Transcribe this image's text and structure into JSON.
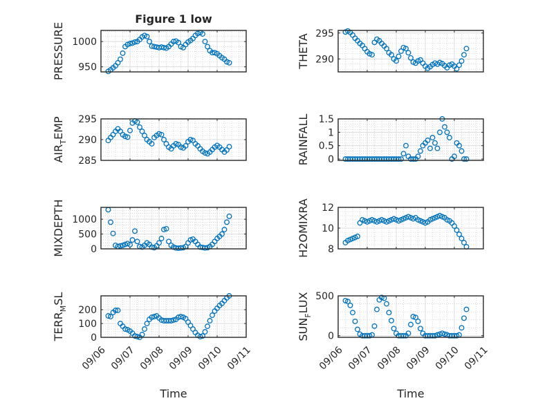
{
  "figure_title": "Figure 1 low",
  "colors": {
    "marker": "#0072bd",
    "axis": "#262626",
    "grid": "#dcdcdc",
    "background": "#ffffff"
  },
  "x_axis": {
    "label": "Time",
    "ticks": [
      "09/06",
      "09/07",
      "09/08",
      "09/09",
      "09/10",
      "09/11"
    ]
  },
  "chart_data": [
    {
      "type": "scatter",
      "id": "pressure",
      "column": 0,
      "row": 0,
      "title": "Figure 1 low",
      "ylabel": "PRESSURE",
      "ylabel_parts": [
        "PRESSURE"
      ],
      "xlabel": "",
      "xlim": [
        "09/06",
        "09/11"
      ],
      "ylim": [
        940,
        1022
      ],
      "yticks": [
        950,
        1000
      ],
      "ytick_labels": [
        "950",
        "1000"
      ],
      "grid": true,
      "minor_grid": true,
      "x": [
        "09/06 06:00",
        "09/06 08:00",
        "09/06 10:00",
        "09/06 12:00",
        "09/06 14:00",
        "09/06 16:00",
        "09/06 18:00",
        "09/06 20:00",
        "09/06 22:00",
        "09/07 00:00",
        "09/07 02:00",
        "09/07 04:00",
        "09/07 06:00",
        "09/07 08:00",
        "09/07 10:00",
        "09/07 12:00",
        "09/07 14:00",
        "09/07 16:00",
        "09/07 18:00",
        "09/07 20:00",
        "09/07 22:00",
        "09/08 00:00",
        "09/08 02:00",
        "09/08 04:00",
        "09/08 06:00",
        "09/08 08:00",
        "09/08 10:00",
        "09/08 12:00",
        "09/08 14:00",
        "09/08 16:00",
        "09/08 18:00",
        "09/08 20:00",
        "09/08 22:00",
        "09/09 00:00",
        "09/09 02:00",
        "09/09 04:00",
        "09/09 06:00",
        "09/09 08:00",
        "09/09 10:00",
        "09/09 12:00",
        "09/09 14:00",
        "09/09 16:00",
        "09/09 18:00",
        "09/09 20:00",
        "09/09 22:00",
        "09/10 00:00",
        "09/10 02:00",
        "09/10 04:00",
        "09/10 06:00",
        "09/10 08:00",
        "09/10 10:00"
      ],
      "values": [
        941,
        944,
        948,
        952,
        958,
        965,
        977,
        990,
        994,
        996,
        997,
        999,
        1000,
        1004,
        1009,
        1012,
        1010,
        1000,
        991,
        990,
        989,
        988,
        989,
        988,
        987,
        990,
        995,
        1000,
        1001,
        998,
        990,
        988,
        994,
        999,
        1002,
        1006,
        1012,
        1016,
        1018,
        1015,
        1000,
        990,
        982,
        978,
        978,
        976,
        972,
        968,
        965,
        960,
        958
      ]
    },
    {
      "type": "scatter",
      "id": "theta",
      "column": 1,
      "row": 0,
      "ylabel": "THETA",
      "ylabel_parts": [
        "THETA"
      ],
      "xlim": [
        "09/06",
        "09/11"
      ],
      "ylim": [
        287.5,
        295.5
      ],
      "yticks": [
        290,
        295
      ],
      "ytick_labels": [
        "290",
        "295"
      ],
      "grid": true,
      "minor_grid": true,
      "x": [
        "09/06 06:00",
        "09/06 08:00",
        "09/06 10:00",
        "09/06 12:00",
        "09/06 14:00",
        "09/06 16:00",
        "09/06 18:00",
        "09/06 20:00",
        "09/06 22:00",
        "09/07 00:00",
        "09/07 02:00",
        "09/07 04:00",
        "09/07 06:00",
        "09/07 08:00",
        "09/07 10:00",
        "09/07 12:00",
        "09/07 14:00",
        "09/07 16:00",
        "09/07 18:00",
        "09/07 20:00",
        "09/07 22:00",
        "09/08 00:00",
        "09/08 02:00",
        "09/08 04:00",
        "09/08 06:00",
        "09/08 08:00",
        "09/08 10:00",
        "09/08 12:00",
        "09/08 14:00",
        "09/08 16:00",
        "09/08 18:00",
        "09/08 20:00",
        "09/08 22:00",
        "09/09 00:00",
        "09/09 02:00",
        "09/09 04:00",
        "09/09 06:00",
        "09/09 08:00",
        "09/09 10:00",
        "09/09 12:00",
        "09/09 14:00",
        "09/09 16:00",
        "09/09 18:00",
        "09/09 20:00",
        "09/09 22:00",
        "09/10 00:00",
        "09/10 02:00",
        "09/10 04:00",
        "09/10 06:00",
        "09/10 08:00",
        "09/10 10:00"
      ],
      "values": [
        295.2,
        295.4,
        295.1,
        294.6,
        294.0,
        293.5,
        293.0,
        292.6,
        292.0,
        291.4,
        291.0,
        290.8,
        293.2,
        293.8,
        293.5,
        293.0,
        292.5,
        292.0,
        291.2,
        290.8,
        290.0,
        289.6,
        290.5,
        291.5,
        292.2,
        292.0,
        291.2,
        290.2,
        289.4,
        289.2,
        289.6,
        289.8,
        289.2,
        288.6,
        288.2,
        288.5,
        288.9,
        289.2,
        289.0,
        289.3,
        289.1,
        288.7,
        288.3,
        288.8,
        289.0,
        288.6,
        288.1,
        288.8,
        289.6,
        290.8,
        292.0
      ]
    },
    {
      "type": "scatter",
      "id": "air_temp",
      "column": 0,
      "row": 1,
      "ylabel": "AIR_TEMP",
      "ylabel_parts": [
        "AIR",
        "T",
        "EMP"
      ],
      "xlim": [
        "09/06",
        "09/11"
      ],
      "ylim": [
        285,
        295
      ],
      "yticks": [
        285,
        290,
        295
      ],
      "ytick_labels": [
        "285",
        "290",
        "295"
      ],
      "grid": true,
      "minor_grid": true,
      "x": [
        "09/06 06:00",
        "09/06 08:00",
        "09/06 10:00",
        "09/06 12:00",
        "09/06 14:00",
        "09/06 16:00",
        "09/06 18:00",
        "09/06 20:00",
        "09/06 22:00",
        "09/07 00:00",
        "09/07 02:00",
        "09/07 04:00",
        "09/07 06:00",
        "09/07 08:00",
        "09/07 10:00",
        "09/07 12:00",
        "09/07 14:00",
        "09/07 16:00",
        "09/07 18:00",
        "09/07 20:00",
        "09/07 22:00",
        "09/08 00:00",
        "09/08 02:00",
        "09/08 04:00",
        "09/08 06:00",
        "09/08 08:00",
        "09/08 10:00",
        "09/08 12:00",
        "09/08 14:00",
        "09/08 16:00",
        "09/08 18:00",
        "09/08 20:00",
        "09/08 22:00",
        "09/09 00:00",
        "09/09 02:00",
        "09/09 04:00",
        "09/09 06:00",
        "09/09 08:00",
        "09/09 10:00",
        "09/09 12:00",
        "09/09 14:00",
        "09/09 16:00",
        "09/09 18:00",
        "09/09 20:00",
        "09/09 22:00",
        "09/10 00:00",
        "09/10 02:00",
        "09/10 04:00",
        "09/10 06:00",
        "09/10 08:00",
        "09/10 10:00"
      ],
      "values": [
        289.8,
        290.5,
        291.2,
        292.0,
        292.6,
        292.0,
        291.2,
        290.8,
        290.6,
        292.2,
        294.0,
        294.5,
        294.2,
        293.0,
        292.0,
        291.0,
        290.0,
        289.5,
        289.0,
        290.5,
        291.0,
        291.4,
        291.2,
        290.0,
        289.0,
        288.2,
        287.8,
        288.5,
        289.0,
        288.8,
        288.2,
        288.0,
        288.5,
        289.5,
        290.0,
        289.8,
        289.0,
        288.5,
        287.8,
        287.2,
        286.8,
        286.6,
        287.0,
        287.6,
        288.2,
        288.6,
        288.2,
        287.6,
        287.0,
        287.5,
        288.3
      ]
    },
    {
      "type": "scatter",
      "id": "rainfall",
      "column": 1,
      "row": 1,
      "ylabel": "RAINFALL",
      "ylabel_parts": [
        "RAINFALL"
      ],
      "xlim": [
        "09/06",
        "09/11"
      ],
      "ylim": [
        -0.05,
        1.5
      ],
      "yticks": [
        0,
        0.5,
        1,
        1.5
      ],
      "ytick_labels": [
        "0",
        "0.5",
        "1",
        "1.5"
      ],
      "grid": true,
      "minor_grid": true,
      "x": [
        "09/06 06:00",
        "09/06 08:00",
        "09/06 10:00",
        "09/06 12:00",
        "09/06 14:00",
        "09/06 16:00",
        "09/06 18:00",
        "09/06 20:00",
        "09/06 22:00",
        "09/07 00:00",
        "09/07 02:00",
        "09/07 04:00",
        "09/07 06:00",
        "09/07 08:00",
        "09/07 10:00",
        "09/07 12:00",
        "09/07 14:00",
        "09/07 16:00",
        "09/07 18:00",
        "09/07 20:00",
        "09/07 22:00",
        "09/08 00:00",
        "09/08 02:00",
        "09/08 04:00",
        "09/08 06:00",
        "09/08 08:00",
        "09/08 10:00",
        "09/08 12:00",
        "09/08 14:00",
        "09/08 16:00",
        "09/08 18:00",
        "09/08 20:00",
        "09/08 22:00",
        "09/09 00:00",
        "09/09 02:00",
        "09/09 04:00",
        "09/09 06:00",
        "09/09 08:00",
        "09/09 10:00",
        "09/09 12:00",
        "09/09 14:00",
        "09/09 16:00",
        "09/09 18:00",
        "09/09 20:00",
        "09/09 22:00",
        "09/10 00:00",
        "09/10 02:00",
        "09/10 04:00",
        "09/10 06:00",
        "09/10 08:00",
        "09/10 10:00"
      ],
      "values": [
        0,
        0,
        0,
        0,
        0,
        0,
        0,
        0,
        0,
        0,
        0,
        0,
        0,
        0,
        0,
        0,
        0,
        0,
        0,
        0,
        0,
        0,
        0,
        0,
        0.2,
        0.5,
        0.1,
        0,
        0,
        0,
        0.1,
        0.3,
        0.5,
        0.6,
        0.7,
        0.4,
        0.8,
        0.6,
        0.4,
        1.0,
        1.5,
        1.2,
        1.0,
        0.8,
        0,
        0.1,
        0.6,
        0.5,
        0.3,
        0,
        0
      ]
    },
    {
      "type": "scatter",
      "id": "mixdepth",
      "column": 0,
      "row": 2,
      "ylabel": "MIXDEPTH",
      "ylabel_parts": [
        "MIXDEPTH"
      ],
      "xlim": [
        "09/06",
        "09/11"
      ],
      "ylim": [
        0,
        1400
      ],
      "yticks": [
        0,
        500,
        1000
      ],
      "ytick_labels": [
        "0",
        "500",
        "1000"
      ],
      "grid": true,
      "minor_grid": true,
      "x": [
        "09/06 06:00",
        "09/06 08:00",
        "09/06 10:00",
        "09/06 12:00",
        "09/06 14:00",
        "09/06 16:00",
        "09/06 18:00",
        "09/06 20:00",
        "09/06 22:00",
        "09/07 00:00",
        "09/07 02:00",
        "09/07 04:00",
        "09/07 06:00",
        "09/07 08:00",
        "09/07 10:00",
        "09/07 12:00",
        "09/07 14:00",
        "09/07 16:00",
        "09/07 18:00",
        "09/07 20:00",
        "09/07 22:00",
        "09/08 00:00",
        "09/08 02:00",
        "09/08 04:00",
        "09/08 06:00",
        "09/08 08:00",
        "09/08 10:00",
        "09/08 12:00",
        "09/08 14:00",
        "09/08 16:00",
        "09/08 18:00",
        "09/08 20:00",
        "09/08 22:00",
        "09/09 00:00",
        "09/09 02:00",
        "09/09 04:00",
        "09/09 06:00",
        "09/09 08:00",
        "09/09 10:00",
        "09/09 12:00",
        "09/09 14:00",
        "09/09 16:00",
        "09/09 18:00",
        "09/09 20:00",
        "09/09 22:00",
        "09/10 00:00",
        "09/10 02:00",
        "09/10 04:00",
        "09/10 06:00",
        "09/10 08:00",
        "09/10 10:00"
      ],
      "values": [
        1320,
        900,
        520,
        120,
        80,
        100,
        120,
        150,
        180,
        140,
        300,
        600,
        250,
        80,
        60,
        120,
        200,
        150,
        60,
        40,
        100,
        200,
        350,
        650,
        680,
        250,
        120,
        60,
        30,
        20,
        30,
        40,
        80,
        200,
        300,
        330,
        250,
        150,
        60,
        50,
        30,
        40,
        80,
        150,
        250,
        350,
        420,
        500,
        650,
        900,
        1100
      ]
    },
    {
      "type": "scatter",
      "id": "h2omixra",
      "column": 1,
      "row": 2,
      "ylabel": "H2OMIXRA",
      "ylabel_parts": [
        "H2OMIXRA"
      ],
      "xlim": [
        "09/06",
        "09/11"
      ],
      "ylim": [
        8,
        12
      ],
      "yticks": [
        8,
        10,
        12
      ],
      "ytick_labels": [
        "8",
        "10",
        "12"
      ],
      "grid": true,
      "minor_grid": true,
      "x": [
        "09/06 06:00",
        "09/06 08:00",
        "09/06 10:00",
        "09/06 12:00",
        "09/06 14:00",
        "09/06 16:00",
        "09/06 18:00",
        "09/06 20:00",
        "09/06 22:00",
        "09/07 00:00",
        "09/07 02:00",
        "09/07 04:00",
        "09/07 06:00",
        "09/07 08:00",
        "09/07 10:00",
        "09/07 12:00",
        "09/07 14:00",
        "09/07 16:00",
        "09/07 18:00",
        "09/07 20:00",
        "09/07 22:00",
        "09/08 00:00",
        "09/08 02:00",
        "09/08 04:00",
        "09/08 06:00",
        "09/08 08:00",
        "09/08 10:00",
        "09/08 12:00",
        "09/08 14:00",
        "09/08 16:00",
        "09/08 18:00",
        "09/08 20:00",
        "09/08 22:00",
        "09/09 00:00",
        "09/09 02:00",
        "09/09 04:00",
        "09/09 06:00",
        "09/09 08:00",
        "09/09 10:00",
        "09/09 12:00",
        "09/09 14:00",
        "09/09 16:00",
        "09/09 18:00",
        "09/09 20:00",
        "09/09 22:00",
        "09/10 00:00",
        "09/10 02:00",
        "09/10 04:00",
        "09/10 06:00",
        "09/10 08:00",
        "09/10 10:00"
      ],
      "values": [
        8.6,
        8.8,
        8.9,
        9.0,
        9.1,
        9.2,
        10.5,
        10.8,
        10.7,
        10.6,
        10.7,
        10.8,
        10.7,
        10.6,
        10.7,
        10.8,
        10.7,
        10.6,
        10.7,
        10.8,
        10.9,
        10.8,
        10.7,
        10.8,
        10.9,
        11.0,
        11.1,
        11.0,
        10.9,
        11.0,
        10.8,
        10.7,
        10.6,
        10.5,
        10.6,
        10.8,
        10.9,
        11.0,
        11.1,
        11.2,
        11.1,
        11.0,
        10.8,
        10.7,
        10.5,
        10.2,
        9.8,
        9.4,
        9.0,
        8.6,
        8.2
      ]
    },
    {
      "type": "scatter",
      "id": "terr_msl",
      "column": 0,
      "row": 3,
      "ylabel": "TERR_MSL",
      "ylabel_parts": [
        "TERR",
        "M",
        "SL"
      ],
      "xlim": [
        "09/06",
        "09/11"
      ],
      "ylim": [
        0,
        300
      ],
      "yticks": [
        0,
        100,
        200
      ],
      "ytick_labels": [
        "0",
        "100",
        "200"
      ],
      "grid": true,
      "minor_grid": true,
      "x": [
        "09/06 06:00",
        "09/06 08:00",
        "09/06 10:00",
        "09/06 12:00",
        "09/06 14:00",
        "09/06 16:00",
        "09/06 18:00",
        "09/06 20:00",
        "09/06 22:00",
        "09/07 00:00",
        "09/07 02:00",
        "09/07 04:00",
        "09/07 06:00",
        "09/07 08:00",
        "09/07 10:00",
        "09/07 12:00",
        "09/07 14:00",
        "09/07 16:00",
        "09/07 18:00",
        "09/07 20:00",
        "09/07 22:00",
        "09/08 00:00",
        "09/08 02:00",
        "09/08 04:00",
        "09/08 06:00",
        "09/08 08:00",
        "09/08 10:00",
        "09/08 12:00",
        "09/08 14:00",
        "09/08 16:00",
        "09/08 18:00",
        "09/08 20:00",
        "09/08 22:00",
        "09/09 00:00",
        "09/09 02:00",
        "09/09 04:00",
        "09/09 06:00",
        "09/09 08:00",
        "09/09 10:00",
        "09/09 12:00",
        "09/09 14:00",
        "09/09 16:00",
        "09/09 18:00",
        "09/09 20:00",
        "09/09 22:00",
        "09/10 00:00",
        "09/10 02:00",
        "09/10 04:00",
        "09/10 06:00",
        "09/10 08:00",
        "09/10 10:00"
      ],
      "values": [
        155,
        150,
        180,
        195,
        195,
        100,
        80,
        60,
        55,
        45,
        30,
        10,
        5,
        0,
        20,
        60,
        100,
        130,
        145,
        150,
        155,
        140,
        125,
        120,
        120,
        120,
        120,
        125,
        130,
        145,
        150,
        145,
        135,
        110,
        85,
        60,
        35,
        15,
        5,
        10,
        40,
        80,
        120,
        160,
        190,
        210,
        230,
        245,
        265,
        285,
        300
      ]
    },
    {
      "type": "scatter",
      "id": "sun_flux",
      "column": 1,
      "row": 3,
      "ylabel": "SUN_FLUX",
      "ylabel_parts": [
        "SUN",
        "F",
        "LUX"
      ],
      "xlim": [
        "09/06",
        "09/11"
      ],
      "ylim": [
        -20,
        500
      ],
      "yticks": [
        0,
        500
      ],
      "ytick_labels": [
        "0",
        "500"
      ],
      "grid": true,
      "minor_grid": true,
      "x": [
        "09/06 06:00",
        "09/06 08:00",
        "09/06 10:00",
        "09/06 12:00",
        "09/06 14:00",
        "09/06 16:00",
        "09/06 18:00",
        "09/06 20:00",
        "09/06 22:00",
        "09/07 00:00",
        "09/07 02:00",
        "09/07 04:00",
        "09/07 06:00",
        "09/07 08:00",
        "09/07 10:00",
        "09/07 12:00",
        "09/07 14:00",
        "09/07 16:00",
        "09/07 18:00",
        "09/07 20:00",
        "09/07 22:00",
        "09/08 00:00",
        "09/08 02:00",
        "09/08 04:00",
        "09/08 06:00",
        "09/08 08:00",
        "09/08 10:00",
        "09/08 12:00",
        "09/08 14:00",
        "09/08 16:00",
        "09/08 18:00",
        "09/08 20:00",
        "09/08 22:00",
        "09/09 00:00",
        "09/09 02:00",
        "09/09 04:00",
        "09/09 06:00",
        "09/09 08:00",
        "09/09 10:00",
        "09/09 12:00",
        "09/09 14:00",
        "09/09 16:00",
        "09/09 18:00",
        "09/09 20:00",
        "09/09 22:00",
        "09/10 00:00",
        "09/10 02:00",
        "09/10 04:00",
        "09/10 06:00",
        "09/10 08:00",
        "09/10 10:00"
      ],
      "values": [
        440,
        430,
        380,
        290,
        180,
        80,
        20,
        0,
        0,
        0,
        0,
        10,
        120,
        330,
        450,
        480,
        470,
        400,
        290,
        190,
        90,
        30,
        0,
        0,
        0,
        0,
        30,
        140,
        240,
        230,
        180,
        90,
        30,
        0,
        0,
        0,
        0,
        0,
        10,
        20,
        30,
        20,
        10,
        0,
        0,
        0,
        0,
        10,
        100,
        220,
        330
      ]
    }
  ]
}
